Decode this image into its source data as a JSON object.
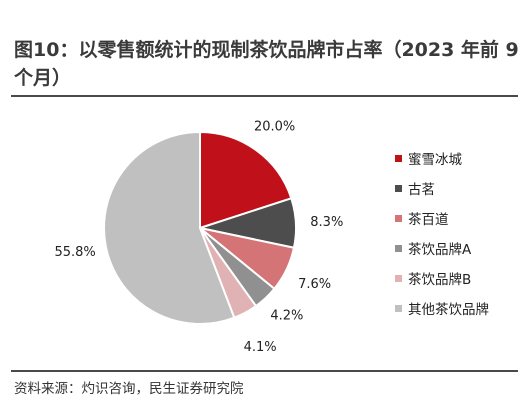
{
  "title": "图10：以零售额统计的现制茶饮品牌市占率（2023 年前 9 个月）",
  "source": "资料来源：灼识咨询，民生证券研究院",
  "chart_data": {
    "type": "pie",
    "title": "图10：以零售额统计的现制茶饮品牌市占率（2023 年前 9 个月）",
    "legend_position": "right",
    "slices": [
      {
        "name": "蜜雪冰城",
        "value": 20.0,
        "label": "20.0%",
        "color": "#c0111a"
      },
      {
        "name": "古茗",
        "value": 8.3,
        "label": "8.3%",
        "color": "#4d4d4d"
      },
      {
        "name": "茶百道",
        "value": 7.6,
        "label": "7.6%",
        "color": "#d57476"
      },
      {
        "name": "茶饮品牌A",
        "value": 4.2,
        "label": "4.2%",
        "color": "#909090"
      },
      {
        "name": "茶饮品牌B",
        "value": 4.1,
        "label": "4.1%",
        "color": "#e0b2b3"
      },
      {
        "name": "其他茶饮品牌",
        "value": 55.8,
        "label": "55.8%",
        "color": "#c0c0c0"
      }
    ]
  }
}
